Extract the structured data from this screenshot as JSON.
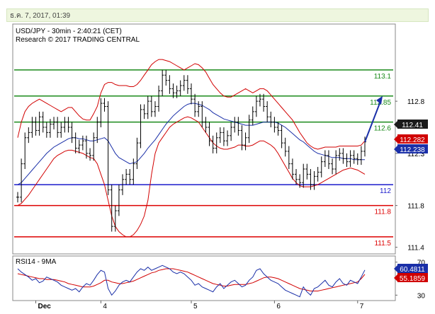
{
  "header": {
    "datetime": "ธ.ค. 7, 2017, 01:39"
  },
  "colors": {
    "price": "#000000",
    "bollinger": "#d20000",
    "moving_average": "#1a2fa8",
    "level_green": "#1a8a1a",
    "level_red": "#dd0000",
    "level_blue": "#1a1acc",
    "arrow": "#1a2fa8",
    "rsi": "#1a2fa8",
    "rsi_ma": "#d20000"
  },
  "chart_data": [
    {
      "type": "line",
      "title": "USD/JPY - 30min - 2:40:21 (CET)",
      "subtitle": "Research © 2017 TRADING CENTRAL",
      "ylim": [
        111.35,
        113.35
      ],
      "y_ticks": [
        "112.8",
        "112.3",
        "111.8",
        "111.4"
      ],
      "x_ticks": [
        "Dec",
        "4",
        "5",
        "6",
        "7"
      ],
      "grid": false,
      "levels": [
        {
          "label": "113.1",
          "value": 113.1,
          "color": "green"
        },
        {
          "label": "112.85",
          "value": 112.85,
          "color": "green"
        },
        {
          "label": "112.6",
          "value": 112.6,
          "color": "green"
        },
        {
          "label": "112",
          "value": 112.0,
          "color": "blue"
        },
        {
          "label": "111.8",
          "value": 111.8,
          "color": "red"
        },
        {
          "label": "111.5",
          "value": 111.5,
          "color": "red"
        }
      ],
      "price_badges": [
        {
          "label": "112.41",
          "value": 112.41,
          "style": "dark"
        },
        {
          "label": "112.282",
          "value": 112.282,
          "style": "red"
        },
        {
          "label": "112.238",
          "value": 112.238,
          "style": "blue"
        }
      ],
      "series": [
        {
          "kind": "price",
          "values": [
            111.88,
            112.2,
            112.45,
            112.5,
            112.6,
            112.52,
            112.65,
            112.55,
            112.5,
            112.58,
            112.6,
            112.5,
            112.55,
            112.6,
            112.55,
            112.45,
            112.35,
            112.38,
            112.42,
            112.3,
            112.28,
            112.45,
            112.6,
            112.78,
            112.75,
            111.95,
            111.6,
            111.75,
            111.95,
            112.05,
            112.1,
            112.05,
            112.2,
            112.4,
            112.72,
            112.68,
            112.8,
            112.7,
            112.75,
            112.9,
            113.05,
            113.0,
            112.92,
            112.88,
            112.9,
            112.95,
            113.0,
            112.92,
            112.82,
            112.7,
            112.75,
            112.6,
            112.55,
            112.42,
            112.35,
            112.45,
            112.5,
            112.42,
            112.47,
            112.55,
            112.6,
            112.52,
            112.38,
            112.45,
            112.62,
            112.7,
            112.8,
            112.82,
            112.75,
            112.65,
            112.6,
            112.55,
            112.52,
            112.4,
            112.32,
            112.2,
            112.1,
            112.05,
            112.02,
            112.15,
            112.1,
            112.0,
            112.08,
            112.12,
            112.22,
            112.28,
            112.2,
            112.15,
            112.28,
            112.3,
            112.25,
            112.22,
            112.28,
            112.25,
            112.24,
            112.32,
            112.41
          ]
        },
        {
          "kind": "moving_average",
          "values": [
            112.0,
            112.02,
            112.06,
            112.1,
            112.14,
            112.18,
            112.22,
            112.26,
            112.3,
            112.33,
            112.36,
            112.38,
            112.4,
            112.42,
            112.44,
            112.45,
            112.45,
            112.44,
            112.44,
            112.43,
            112.42,
            112.42,
            112.43,
            112.44,
            112.45,
            112.42,
            112.36,
            112.3,
            112.26,
            112.24,
            112.22,
            112.2,
            112.21,
            112.22,
            112.26,
            112.3,
            112.35,
            112.39,
            112.43,
            112.48,
            112.53,
            112.58,
            112.62,
            112.66,
            112.69,
            112.72,
            112.75,
            112.77,
            112.78,
            112.78,
            112.77,
            112.76,
            112.74,
            112.72,
            112.69,
            112.67,
            112.65,
            112.63,
            112.62,
            112.61,
            112.6,
            112.59,
            112.58,
            112.57,
            112.57,
            112.57,
            112.58,
            112.59,
            112.6,
            112.6,
            112.6,
            112.6,
            112.59,
            112.57,
            112.55,
            112.52,
            112.49,
            112.46,
            112.43,
            112.41,
            112.38,
            112.35,
            112.32,
            112.3,
            112.29,
            112.28,
            112.27,
            112.26,
            112.26,
            112.26,
            112.25,
            112.25,
            112.25,
            112.24,
            112.24,
            112.24,
            112.24
          ]
        },
        {
          "kind": "bollinger_upper",
          "values": [
            112.45,
            112.6,
            112.7,
            112.75,
            112.78,
            112.8,
            112.82,
            112.8,
            112.78,
            112.76,
            112.74,
            112.72,
            112.7,
            112.72,
            112.74,
            112.74,
            112.7,
            112.66,
            112.63,
            112.62,
            112.62,
            112.68,
            112.75,
            112.88,
            112.96,
            112.98,
            112.98,
            112.96,
            112.95,
            112.95,
            112.95,
            112.94,
            112.94,
            112.96,
            113.0,
            113.05,
            113.1,
            113.15,
            113.18,
            113.2,
            113.2,
            113.19,
            113.18,
            113.16,
            113.14,
            113.12,
            113.1,
            113.12,
            113.14,
            113.16,
            113.15,
            113.12,
            113.08,
            113.02,
            112.96,
            112.92,
            112.88,
            112.85,
            112.84,
            112.84,
            112.86,
            112.88,
            112.9,
            112.92,
            112.9,
            112.88,
            112.9,
            112.92,
            112.92,
            112.9,
            112.86,
            112.82,
            112.78,
            112.74,
            112.7,
            112.66,
            112.62,
            112.56,
            112.5,
            112.45,
            112.4,
            112.37,
            112.35,
            112.34,
            112.35,
            112.36,
            112.36,
            112.36,
            112.36,
            112.37,
            112.37,
            112.37,
            112.37,
            112.37,
            112.37,
            112.38,
            112.42
          ]
        },
        {
          "kind": "bollinger_lower",
          "values": [
            111.8,
            111.82,
            111.86,
            111.9,
            111.95,
            112.0,
            112.05,
            112.1,
            112.15,
            112.2,
            112.25,
            112.28,
            112.3,
            112.32,
            112.33,
            112.33,
            112.32,
            112.31,
            112.3,
            112.28,
            112.26,
            112.25,
            112.2,
            112.1,
            112.0,
            111.85,
            111.7,
            111.6,
            111.55,
            111.52,
            111.5,
            111.5,
            111.52,
            111.56,
            111.62,
            111.7,
            111.85,
            112.1,
            112.3,
            112.4,
            112.45,
            112.5,
            112.55,
            112.58,
            112.6,
            112.62,
            112.64,
            112.65,
            112.64,
            112.62,
            112.6,
            112.55,
            112.5,
            112.45,
            112.4,
            112.37,
            112.35,
            112.34,
            112.34,
            112.35,
            112.36,
            112.38,
            112.38,
            112.37,
            112.37,
            112.38,
            112.4,
            112.42,
            112.42,
            112.4,
            112.38,
            112.35,
            112.3,
            112.24,
            112.18,
            112.12,
            112.06,
            112.02,
            111.99,
            111.98,
            111.98,
            111.98,
            111.99,
            112.0,
            112.02,
            112.04,
            112.06,
            112.08,
            112.1,
            112.12,
            112.14,
            112.15,
            112.16,
            112.15,
            112.14,
            112.12,
            112.1
          ]
        }
      ],
      "arrow": {
        "from": [
          96,
          112.41
        ],
        "to": [
          99,
          112.85
        ]
      }
    },
    {
      "type": "line",
      "title": "RSI14 - 9MA",
      "ylim": [
        26,
        74
      ],
      "y_ticks": [
        "70",
        "30"
      ],
      "price_badges": [
        {
          "label": "60.4811",
          "value": 60.4811,
          "style": "blue"
        },
        {
          "label": "55.1859",
          "value": 55.1859,
          "style": "red"
        }
      ],
      "series": [
        {
          "kind": "rsi",
          "values": [
            62,
            58,
            55,
            52,
            48,
            50,
            45,
            47,
            52,
            50,
            48,
            46,
            42,
            40,
            38,
            36,
            38,
            34,
            40,
            44,
            42,
            48,
            55,
            60,
            58,
            38,
            30,
            35,
            42,
            46,
            48,
            46,
            52,
            58,
            62,
            60,
            64,
            60,
            62,
            64,
            66,
            64,
            62,
            58,
            56,
            58,
            56,
            52,
            48,
            42,
            44,
            40,
            38,
            36,
            34,
            40,
            44,
            38,
            42,
            46,
            48,
            44,
            40,
            42,
            48,
            52,
            60,
            62,
            56,
            52,
            48,
            46,
            44,
            40,
            36,
            34,
            32,
            30,
            28,
            40,
            34,
            30,
            38,
            40,
            44,
            48,
            42,
            40,
            46,
            50,
            44,
            42,
            48,
            46,
            44,
            52,
            60.48
          ]
        },
        {
          "kind": "rsi_ma",
          "values": [
            56,
            55,
            54,
            53,
            52,
            51,
            50,
            50,
            49,
            49,
            49,
            48,
            47,
            46,
            44,
            43,
            42,
            41,
            40,
            40,
            40,
            41,
            43,
            45,
            48,
            48,
            46,
            45,
            44,
            44,
            45,
            46,
            47,
            49,
            51,
            53,
            55,
            57,
            58,
            60,
            61,
            62,
            62,
            62,
            61,
            60,
            59,
            58,
            56,
            54,
            52,
            50,
            48,
            46,
            44,
            43,
            42,
            41,
            41,
            42,
            43,
            43,
            43,
            43,
            44,
            45,
            47,
            49,
            51,
            52,
            52,
            51,
            50,
            48,
            46,
            44,
            42,
            40,
            38,
            37,
            36,
            35,
            35,
            35,
            36,
            37,
            38,
            39,
            40,
            41,
            42,
            43,
            44,
            45,
            46,
            50,
            55.19
          ]
        }
      ]
    }
  ]
}
